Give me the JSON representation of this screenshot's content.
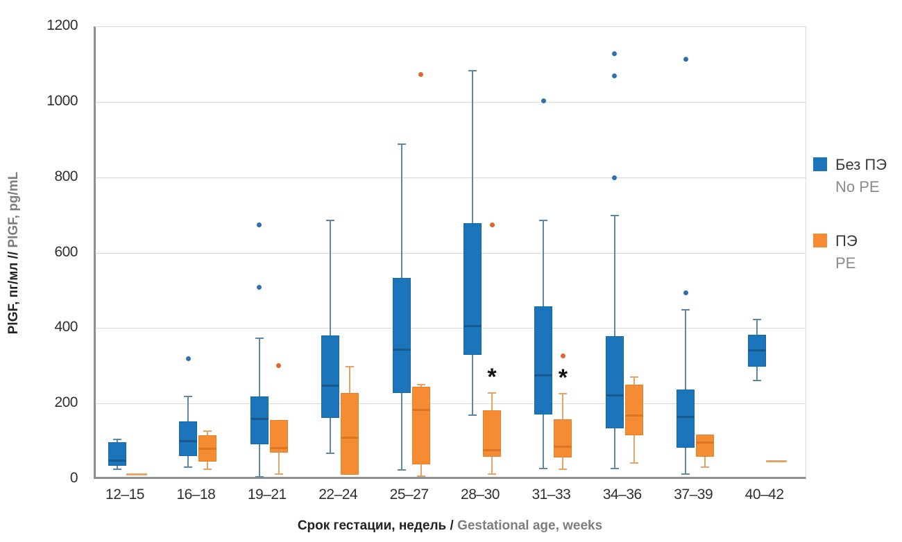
{
  "figure": {
    "background": "#ffffff",
    "grid_color": "#d9d9d9",
    "axis_color": "#8f8f8f",
    "significance_marker": "*"
  },
  "chart_data": {
    "type": "boxplot",
    "title": "",
    "ylabel_primary": "PlGF, пг/мл //",
    "ylabel_secondary": "PlGF, pg/mL",
    "xlabel_primary": "Срок гестации, недель /",
    "xlabel_secondary": "Gestational age, weeks",
    "ylim": [
      0,
      1200
    ],
    "yticks": [
      0,
      200,
      400,
      600,
      800,
      1000,
      1200
    ],
    "grid": true,
    "legend_position": "right",
    "categories": [
      "12–15",
      "16–18",
      "19–21",
      "22–24",
      "25–27",
      "28–30",
      "31–33",
      "34–36",
      "37–39",
      "40–42"
    ],
    "legend": [
      {
        "label_primary": "Без ПЭ",
        "label_secondary": "No PE",
        "color": "#1c75bb"
      },
      {
        "label_primary": "ПЭ",
        "label_secondary": "PE",
        "color": "#f58b33"
      }
    ],
    "series": [
      {
        "name": "Без ПЭ / No PE",
        "color": "#1c75bb",
        "border_color": "#1568a8",
        "median_color": "#17588f",
        "whisker_color": "#5b87ab",
        "outlier_color": "#2e6fae",
        "offset": -14,
        "boxes": [
          {
            "category": "12–15",
            "low": 28,
            "q1": 36,
            "median": 52,
            "q3": 100,
            "high": 107,
            "outliers": [],
            "annotation": ""
          },
          {
            "category": "16–18",
            "low": 33,
            "q1": 63,
            "median": 103,
            "q3": 155,
            "high": 220,
            "outliers": [
              320
            ],
            "annotation": ""
          },
          {
            "category": "19–21",
            "low": 8,
            "q1": 94,
            "median": 162,
            "q3": 220,
            "high": 375,
            "outliers": [
              510,
              675
            ],
            "annotation": ""
          },
          {
            "category": "22–24",
            "low": 70,
            "q1": 164,
            "median": 250,
            "q3": 383,
            "high": 688,
            "outliers": [],
            "annotation": ""
          },
          {
            "category": "25–27",
            "low": 25,
            "q1": 230,
            "median": 345,
            "q3": 535,
            "high": 890,
            "outliers": [],
            "annotation": ""
          },
          {
            "category": "28–30",
            "low": 171,
            "q1": 330,
            "median": 408,
            "q3": 680,
            "high": 1085,
            "outliers": [],
            "annotation": ""
          },
          {
            "category": "31–33",
            "low": 30,
            "q1": 173,
            "median": 278,
            "q3": 460,
            "high": 687,
            "outliers": [
              1005
            ],
            "annotation": ""
          },
          {
            "category": "34–36",
            "low": 30,
            "q1": 136,
            "median": 224,
            "q3": 380,
            "high": 700,
            "outliers": [
              800,
              1070,
              1130
            ],
            "annotation": ""
          },
          {
            "category": "37–39",
            "low": 15,
            "q1": 85,
            "median": 168,
            "q3": 238,
            "high": 450,
            "outliers": [
              495,
              1115
            ],
            "annotation": ""
          },
          {
            "category": "40–42",
            "low": 263,
            "q1": 300,
            "median": 344,
            "q3": 384,
            "high": 425,
            "outliers": [],
            "annotation": ""
          }
        ]
      },
      {
        "name": "ПЭ / PE",
        "color": "#f58b33",
        "border_color": "#e87f27",
        "median_color": "#db7526",
        "whisker_color": "#e7a266",
        "outlier_color": "#e2652b",
        "offset": 14,
        "boxes": [
          {
            "category": "12–15",
            "low": 13,
            "q1": 13,
            "median": 13,
            "q3": 13,
            "high": 13,
            "outliers": [],
            "annotation": ""
          },
          {
            "category": "16–18",
            "low": 28,
            "q1": 48,
            "median": 83,
            "q3": 118,
            "high": 129,
            "outliers": [],
            "annotation": ""
          },
          {
            "category": "19–21",
            "low": 15,
            "q1": 72,
            "median": 85,
            "q3": 158,
            "high": 158,
            "outliers": [
              302
            ],
            "annotation": ""
          },
          {
            "category": "22–24",
            "low": 13,
            "q1": 13,
            "median": 112,
            "q3": 230,
            "high": 300,
            "outliers": [],
            "annotation": ""
          },
          {
            "category": "25–27",
            "low": 10,
            "q1": 40,
            "median": 186,
            "q3": 246,
            "high": 252,
            "outliers": [
              1075
            ],
            "annotation": ""
          },
          {
            "category": "28–30",
            "low": 15,
            "q1": 61,
            "median": 79,
            "q3": 183,
            "high": 230,
            "outliers": [
              675
            ],
            "annotation": "*"
          },
          {
            "category": "31–33",
            "low": 28,
            "q1": 59,
            "median": 88,
            "q3": 160,
            "high": 227,
            "outliers": [
              328
            ],
            "annotation": "*"
          },
          {
            "category": "34–36",
            "low": 44,
            "q1": 118,
            "median": 171,
            "q3": 252,
            "high": 272,
            "outliers": [],
            "annotation": ""
          },
          {
            "category": "37–39",
            "low": 33,
            "q1": 61,
            "median": 99,
            "q3": 119,
            "high": 119,
            "outliers": [],
            "annotation": ""
          },
          {
            "category": "40–42",
            "low": 48,
            "q1": 48,
            "median": 48,
            "q3": 48,
            "high": 48,
            "outliers": [],
            "annotation": ""
          }
        ]
      }
    ]
  }
}
